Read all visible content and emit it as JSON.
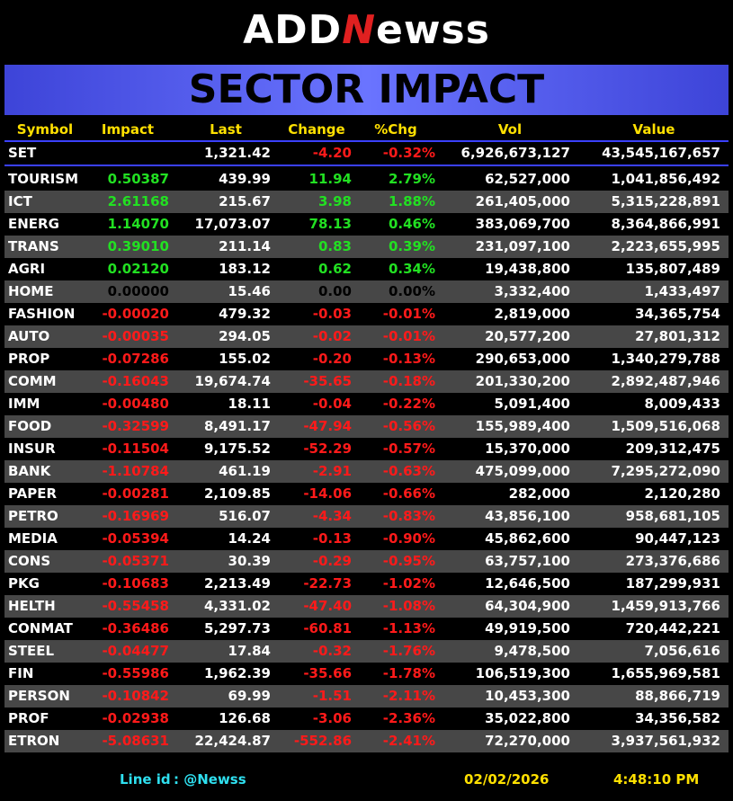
{
  "header": {
    "logo": {
      "left": "ADD",
      "mid": "N",
      "right": "ewss"
    },
    "title": "SECTOR IMPACT"
  },
  "table": {
    "columns": [
      "Symbol",
      "Impact",
      "Last",
      "Change",
      "%Chg",
      "Vol",
      "Value"
    ],
    "index_row": [
      "SET",
      null,
      "1,321.42",
      "-4.20",
      "-0.32%",
      "6,926,673,127",
      "43,545,167,657"
    ],
    "rows": [
      [
        "TOURISM",
        "0.50387",
        "439.99",
        "11.94",
        "2.79%",
        "62,527,000",
        "1,041,856,492"
      ],
      [
        "ICT",
        "2.61168",
        "215.67",
        "3.98",
        "1.88%",
        "261,405,000",
        "5,315,228,891"
      ],
      [
        "ENERG",
        "1.14070",
        "17,073.07",
        "78.13",
        "0.46%",
        "383,069,700",
        "8,364,866,991"
      ],
      [
        "TRANS",
        "0.39010",
        "211.14",
        "0.83",
        "0.39%",
        "231,097,100",
        "2,223,655,995"
      ],
      [
        "AGRI",
        "0.02120",
        "183.12",
        "0.62",
        "0.34%",
        "19,438,800",
        "135,807,489"
      ],
      [
        "HOME",
        "0.00000",
        "15.46",
        "0.00",
        "0.00%",
        "3,332,400",
        "1,433,497"
      ],
      [
        "FASHION",
        "-0.00020",
        "479.32",
        "-0.03",
        "-0.01%",
        "2,819,000",
        "34,365,754"
      ],
      [
        "AUTO",
        "-0.00035",
        "294.05",
        "-0.02",
        "-0.01%",
        "20,577,200",
        "27,801,312"
      ],
      [
        "PROP",
        "-0.07286",
        "155.02",
        "-0.20",
        "-0.13%",
        "290,653,000",
        "1,340,279,788"
      ],
      [
        "COMM",
        "-0.16043",
        "19,674.74",
        "-35.65",
        "-0.18%",
        "201,330,200",
        "2,892,487,946"
      ],
      [
        "IMM",
        "-0.00480",
        "18.11",
        "-0.04",
        "-0.22%",
        "5,091,400",
        "8,009,433"
      ],
      [
        "FOOD",
        "-0.32599",
        "8,491.17",
        "-47.94",
        "-0.56%",
        "155,989,400",
        "1,509,516,068"
      ],
      [
        "INSUR",
        "-0.11504",
        "9,175.52",
        "-52.29",
        "-0.57%",
        "15,370,000",
        "209,312,475"
      ],
      [
        "BANK",
        "-1.10784",
        "461.19",
        "-2.91",
        "-0.63%",
        "475,099,000",
        "7,295,272,090"
      ],
      [
        "PAPER",
        "-0.00281",
        "2,109.85",
        "-14.06",
        "-0.66%",
        "282,000",
        "2,120,280"
      ],
      [
        "PETRO",
        "-0.16969",
        "516.07",
        "-4.34",
        "-0.83%",
        "43,856,100",
        "958,681,105"
      ],
      [
        "MEDIA",
        "-0.05394",
        "14.24",
        "-0.13",
        "-0.90%",
        "45,862,600",
        "90,447,123"
      ],
      [
        "CONS",
        "-0.05371",
        "30.39",
        "-0.29",
        "-0.95%",
        "63,757,100",
        "273,376,686"
      ],
      [
        "PKG",
        "-0.10683",
        "2,213.49",
        "-22.73",
        "-1.02%",
        "12,646,500",
        "187,299,931"
      ],
      [
        "HELTH",
        "-0.55458",
        "4,331.02",
        "-47.40",
        "-1.08%",
        "64,304,900",
        "1,459,913,766"
      ],
      [
        "CONMAT",
        "-0.36486",
        "5,297.73",
        "-60.81",
        "-1.13%",
        "49,919,500",
        "720,442,221"
      ],
      [
        "STEEL",
        "-0.04477",
        "17.84",
        "-0.32",
        "-1.76%",
        "9,478,500",
        "7,056,616"
      ],
      [
        "FIN",
        "-0.55986",
        "1,962.39",
        "-35.66",
        "-1.78%",
        "106,519,300",
        "1,655,969,581"
      ],
      [
        "PERSON",
        "-0.10842",
        "69.99",
        "-1.51",
        "-2.11%",
        "10,453,300",
        "88,866,719"
      ],
      [
        "PROF",
        "-0.02938",
        "126.68",
        "-3.06",
        "-2.36%",
        "35,022,800",
        "34,356,582"
      ],
      [
        "ETRON",
        "-5.08631",
        "22,424.87",
        "-552.86",
        "-2.41%",
        "72,270,000",
        "3,937,561,932"
      ]
    ]
  },
  "footer": {
    "line_label": "Line id",
    "line_id": ": @Newss",
    "date": "02/02/2026",
    "time": "4:48:10 PM"
  }
}
